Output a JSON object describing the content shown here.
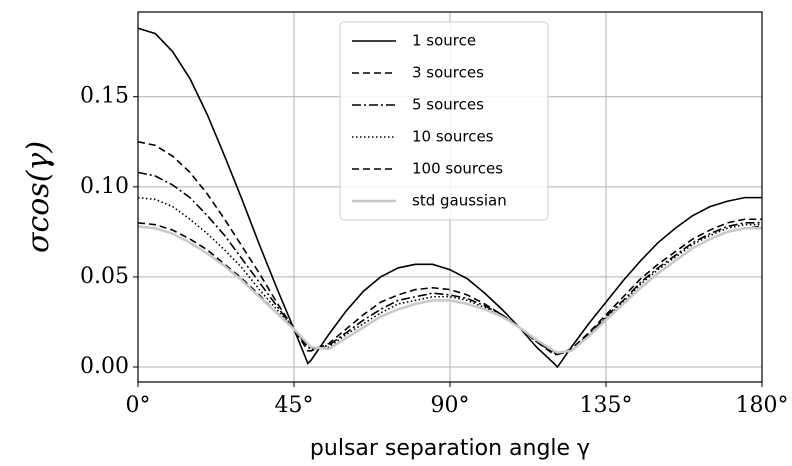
{
  "chart_data": {
    "type": "line",
    "xlabel": "pulsar separation angle γ",
    "ylabel": "σcos(γ)",
    "x": [
      0,
      5,
      10,
      15,
      20,
      25,
      30,
      35,
      40,
      45,
      49,
      50,
      55,
      60,
      65,
      70,
      75,
      80,
      85,
      90,
      95,
      100,
      105,
      110,
      115,
      120,
      121,
      125,
      130,
      135,
      140,
      145,
      150,
      155,
      160,
      165,
      170,
      175,
      180
    ],
    "series": [
      {
        "name": "1 source",
        "color": "#000000",
        "dash": "solid",
        "values": [
          0.188,
          0.185,
          0.175,
          0.16,
          0.14,
          0.117,
          0.093,
          0.068,
          0.044,
          0.021,
          0.002,
          0.004,
          0.018,
          0.031,
          0.042,
          0.05,
          0.055,
          0.057,
          0.057,
          0.054,
          0.049,
          0.041,
          0.032,
          0.022,
          0.011,
          0.002,
          0.0,
          0.011,
          0.024,
          0.036,
          0.048,
          0.059,
          0.069,
          0.077,
          0.084,
          0.089,
          0.092,
          0.094,
          0.094
        ]
      },
      {
        "name": "3 sources",
        "color": "#000000",
        "dash": "dashed",
        "values": [
          0.125,
          0.123,
          0.117,
          0.108,
          0.096,
          0.082,
          0.067,
          0.052,
          0.036,
          0.021,
          0.009,
          0.009,
          0.013,
          0.021,
          0.029,
          0.036,
          0.04,
          0.043,
          0.044,
          0.043,
          0.04,
          0.035,
          0.029,
          0.022,
          0.014,
          0.007,
          0.007,
          0.01,
          0.019,
          0.029,
          0.039,
          0.049,
          0.057,
          0.064,
          0.071,
          0.076,
          0.08,
          0.082,
          0.082
        ]
      },
      {
        "name": "5 sources",
        "color": "#000000",
        "dash": "dashdot",
        "values": [
          0.108,
          0.106,
          0.101,
          0.094,
          0.084,
          0.073,
          0.06,
          0.047,
          0.034,
          0.021,
          0.011,
          0.01,
          0.012,
          0.019,
          0.026,
          0.032,
          0.037,
          0.039,
          0.041,
          0.04,
          0.038,
          0.034,
          0.029,
          0.022,
          0.014,
          0.008,
          0.007,
          0.009,
          0.018,
          0.028,
          0.037,
          0.047,
          0.055,
          0.062,
          0.069,
          0.074,
          0.078,
          0.08,
          0.08
        ]
      },
      {
        "name": "10 sources",
        "color": "#000000",
        "dash": "dotted",
        "values": [
          0.094,
          0.093,
          0.089,
          0.082,
          0.074,
          0.065,
          0.055,
          0.043,
          0.032,
          0.021,
          0.012,
          0.01,
          0.011,
          0.018,
          0.024,
          0.03,
          0.035,
          0.037,
          0.039,
          0.039,
          0.037,
          0.033,
          0.028,
          0.022,
          0.015,
          0.008,
          0.007,
          0.009,
          0.018,
          0.027,
          0.036,
          0.046,
          0.054,
          0.061,
          0.068,
          0.073,
          0.077,
          0.079,
          0.079
        ]
      },
      {
        "name": "100 sources",
        "color": "#000000",
        "dash": "dashed",
        "values": [
          0.08,
          0.079,
          0.076,
          0.071,
          0.065,
          0.057,
          0.049,
          0.04,
          0.03,
          0.021,
          0.013,
          0.011,
          0.01,
          0.016,
          0.022,
          0.028,
          0.032,
          0.035,
          0.037,
          0.037,
          0.035,
          0.032,
          0.028,
          0.022,
          0.015,
          0.009,
          0.008,
          0.009,
          0.017,
          0.026,
          0.035,
          0.044,
          0.052,
          0.059,
          0.066,
          0.071,
          0.075,
          0.077,
          0.078
        ]
      },
      {
        "name": "std gaussian",
        "color": "#c8c8c8",
        "dash": "solid",
        "values": [
          0.078,
          0.077,
          0.074,
          0.069,
          0.063,
          0.056,
          0.048,
          0.039,
          0.03,
          0.021,
          0.013,
          0.011,
          0.01,
          0.016,
          0.022,
          0.028,
          0.032,
          0.035,
          0.037,
          0.037,
          0.035,
          0.032,
          0.028,
          0.022,
          0.015,
          0.009,
          0.008,
          0.009,
          0.017,
          0.026,
          0.035,
          0.044,
          0.052,
          0.059,
          0.066,
          0.071,
          0.075,
          0.077,
          0.077
        ]
      }
    ],
    "xlim": [
      0,
      180
    ],
    "xticks": [
      {
        "value": 0,
        "label": "0°"
      },
      {
        "value": 45,
        "label": "45°"
      },
      {
        "value": 90,
        "label": "90°"
      },
      {
        "value": 135,
        "label": "135°"
      },
      {
        "value": 180,
        "label": "180°"
      }
    ],
    "ylim": [
      -0.0083,
      0.197
    ],
    "yticks": [
      {
        "value": 0,
        "label": "0.00"
      },
      {
        "value": 0.05,
        "label": "0.05"
      },
      {
        "value": 0.1,
        "label": "0.10"
      },
      {
        "value": 0.15,
        "label": "0.15"
      }
    ],
    "grid": true,
    "legend": "upper center"
  }
}
